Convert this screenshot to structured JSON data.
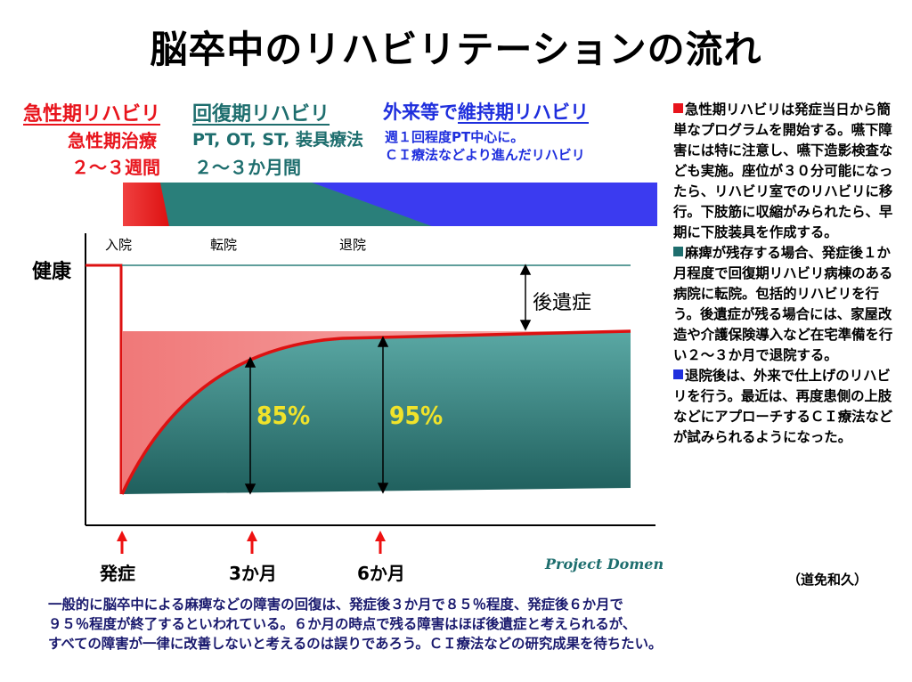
{
  "title": "脳卒中のリハビリテーションの流れ",
  "phases": {
    "acute": {
      "heading": "急性期リハビリ",
      "treatment": "急性期治療",
      "duration": "２～３週間"
    },
    "recovery": {
      "heading": "回復期リハビリ",
      "treatment": "PT, OT, ST, 装具療法",
      "duration": "２～３か月間"
    },
    "maintenance": {
      "heading_prefix": "外来等で",
      "heading": "維持期リハビリ",
      "line1": "週１回程度PT中心に。",
      "line2": "ＣＩ療法などより進んだリハビリ"
    }
  },
  "diagram": {
    "y_label": "健康",
    "events": [
      "入院",
      "転院",
      "退院"
    ],
    "sequela_label": "後遺症",
    "pct_3m": "85%",
    "pct_6m": "95%",
    "time_labels": [
      "発症",
      "3か月",
      "6か月"
    ],
    "colors": {
      "acute": "#ee1c1c",
      "recovery": "#2a7f7a",
      "maintenance": "#2222ee",
      "curve": "#dd1111",
      "text_yellow": "#f0e32a"
    }
  },
  "credit": "Project Domen",
  "side_notes": [
    {
      "color": "#e8141c",
      "text": "急性期リハビリは発症当日から簡単なプログラムを開始する。嚥下障害には特に注意し、嚥下造影検査なども実施。座位が３０分可能になったら、リハビリ室でのリハビリに移行。下肢筋に収縮がみられたら、早期に下肢装具を作成する。"
    },
    {
      "color": "#1e6e6e",
      "text": "麻痺が残存する場合、発症後１か月程度で回復期リハビリ病棟のある病院に転院。包括的リハビリを行う。後遺症が残る場合には、家屋改造や介護保険導入など在宅準備を行い２～３か月で退院する。"
    },
    {
      "color": "#1f2fdd",
      "text": "退院後は、外来で仕上げのリハビリを行う。最近は、再度患側の上肢などにアプローチするＣＩ療法などが試みられるようになった。"
    }
  ],
  "author": "（道免和久）",
  "footer": [
    "一般的に脳卒中による麻痺などの障害の回復は、発症後３か月で８５％程度、発症後６か月で",
    "９５％程度が終了するといわれている。６か月の時点で残る障害はほぼ後遺症と考えられるが、",
    "すべての障害が一律に改善しないと考えるのは誤りであろう。ＣＩ療法などの研究成果を待ちたい。"
  ]
}
